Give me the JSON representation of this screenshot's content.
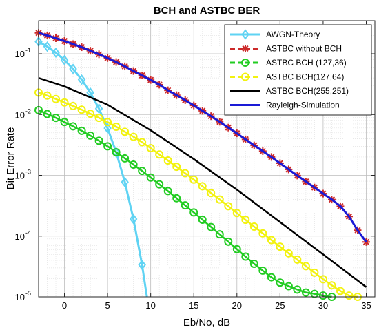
{
  "chart_data": {
    "type": "line",
    "title": "BCH and ASTBC  BER",
    "xlabel": "Eb/No, dB",
    "ylabel": "Bit Error Rate",
    "xlim": [
      -3,
      36
    ],
    "ylim": [
      1e-05,
      0.35
    ],
    "yscale": "log",
    "grid": true,
    "legend_position": "top-right",
    "x_ticks": [
      "0",
      "5",
      "10",
      "15",
      "20",
      "25",
      "30",
      "35"
    ],
    "x_tick_values": [
      0,
      5,
      10,
      15,
      20,
      25,
      30,
      35
    ],
    "y_ticks": [
      {
        "base": "10",
        "exp": "-1",
        "value": 0.1
      },
      {
        "base": "10",
        "exp": "-2",
        "value": 0.01
      },
      {
        "base": "10",
        "exp": "-3",
        "value": 0.001
      },
      {
        "base": "10",
        "exp": "-4",
        "value": 0.0001
      },
      {
        "base": "10",
        "exp": "-5",
        "value": 1e-05
      }
    ],
    "series": [
      {
        "name": "AWGN-Theory",
        "color": "#5fd3f3",
        "marker": "diamond",
        "x": [
          -3,
          -2,
          -1,
          0,
          1,
          2,
          3,
          4,
          5,
          6,
          7,
          8,
          9,
          10
        ],
        "y": [
          0.158,
          0.131,
          0.104,
          0.0786,
          0.0563,
          0.0375,
          0.0229,
          0.0125,
          0.00595,
          0.00239,
          0.000773,
          0.000191,
          3.36e-05,
          3.87e-06
        ]
      },
      {
        "name": "ASTBC without BCH",
        "color": "#cc2a2a",
        "marker": "star",
        "x": [
          -3,
          -2,
          -1,
          0,
          1,
          2,
          3,
          4,
          5,
          6,
          7,
          8,
          9,
          10,
          11,
          12,
          13,
          14,
          15,
          16,
          17,
          18,
          19,
          20,
          21,
          22,
          23,
          24,
          25,
          26,
          27,
          28,
          29,
          30,
          31,
          32,
          33,
          34,
          35
        ],
        "y": [
          0.22,
          0.2,
          0.18,
          0.162,
          0.144,
          0.128,
          0.112,
          0.098,
          0.085,
          0.073,
          0.062,
          0.052,
          0.044,
          0.037,
          0.031,
          0.025,
          0.0208,
          0.0172,
          0.0141,
          0.0115,
          0.0094,
          0.0076,
          0.0061,
          0.0049,
          0.0039,
          0.0031,
          0.0025,
          0.002,
          0.00158,
          0.00125,
          0.00099,
          0.00079,
          0.00063,
          0.0005,
          0.0004,
          0.00031,
          0.00021,
          0.000125,
          8e-05
        ]
      },
      {
        "name": "ASTBC BCH (127,36)",
        "color": "#22cc22",
        "marker": "circle",
        "x": [
          -3,
          -2,
          -1,
          0,
          1,
          2,
          3,
          4,
          5,
          6,
          7,
          8,
          9,
          10,
          11,
          12,
          13,
          14,
          15,
          16,
          17,
          18,
          19,
          20,
          21,
          22,
          23,
          24,
          25,
          26,
          27,
          28,
          29,
          30,
          31
        ],
        "y": [
          0.0118,
          0.0102,
          0.0088,
          0.0075,
          0.0064,
          0.0054,
          0.0045,
          0.0037,
          0.003,
          0.0024,
          0.0019,
          0.0015,
          0.00118,
          0.00092,
          0.00071,
          0.00055,
          0.00042,
          0.00032,
          0.000245,
          0.000186,
          0.000141,
          0.000107,
          8.1e-05,
          6.1e-05,
          4.6e-05,
          3.5e-05,
          2.7e-05,
          2.1e-05,
          1.72e-05,
          1.5e-05,
          1.32e-05,
          1.18e-05,
          1.12e-05,
          1.05e-05,
          1e-05
        ]
      },
      {
        "name": "ASTBC BCH(127,64)",
        "color": "#f2f20f",
        "marker": "circle",
        "x": [
          -3,
          -2,
          -1,
          0,
          1,
          2,
          3,
          4,
          5,
          6,
          7,
          8,
          9,
          10,
          11,
          12,
          13,
          14,
          15,
          16,
          17,
          18,
          19,
          20,
          21,
          22,
          23,
          24,
          25,
          26,
          27,
          28,
          29,
          30,
          31,
          32,
          33,
          34
        ],
        "y": [
          0.023,
          0.0205,
          0.018,
          0.0158,
          0.0138,
          0.012,
          0.0103,
          0.0088,
          0.0075,
          0.0063,
          0.0052,
          0.0043,
          0.0035,
          0.0028,
          0.0022,
          0.00175,
          0.00138,
          0.00108,
          0.00085,
          0.00066,
          0.00051,
          0.0004,
          0.00031,
          0.00024,
          0.000185,
          0.000143,
          0.000111,
          8.6e-05,
          6.7e-05,
          5.2e-05,
          4.1e-05,
          3.2e-05,
          2.5e-05,
          1.95e-05,
          1.55e-05,
          1.25e-05,
          1.05e-05,
          1e-05
        ]
      },
      {
        "name": "ASTBC BCH(255,251)",
        "color": "#000000",
        "marker": "none",
        "x": [
          -3,
          0,
          5,
          10,
          15,
          20,
          25,
          30,
          35
        ],
        "y": [
          0.04,
          0.029,
          0.0145,
          0.0055,
          0.00185,
          0.00058,
          0.00017,
          5e-05,
          1.45e-05
        ]
      },
      {
        "name": "Rayleigh-Simulation",
        "color": "#1a1ad6",
        "marker": "none",
        "x": [
          -3,
          -2,
          -1,
          0,
          1,
          2,
          3,
          4,
          5,
          6,
          7,
          8,
          9,
          10,
          11,
          12,
          13,
          14,
          15,
          16,
          17,
          18,
          19,
          20,
          21,
          22,
          23,
          24,
          25,
          26,
          27,
          28,
          29,
          30,
          31,
          32,
          33,
          34,
          35
        ],
        "y": [
          0.22,
          0.2,
          0.18,
          0.162,
          0.144,
          0.128,
          0.112,
          0.098,
          0.085,
          0.073,
          0.062,
          0.052,
          0.044,
          0.037,
          0.031,
          0.025,
          0.0208,
          0.0172,
          0.0141,
          0.0115,
          0.0094,
          0.0076,
          0.0061,
          0.0049,
          0.0039,
          0.0031,
          0.0025,
          0.002,
          0.00158,
          0.00125,
          0.00099,
          0.00079,
          0.00063,
          0.0005,
          0.0004,
          0.00031,
          0.00021,
          0.000125,
          8e-05
        ]
      }
    ]
  }
}
